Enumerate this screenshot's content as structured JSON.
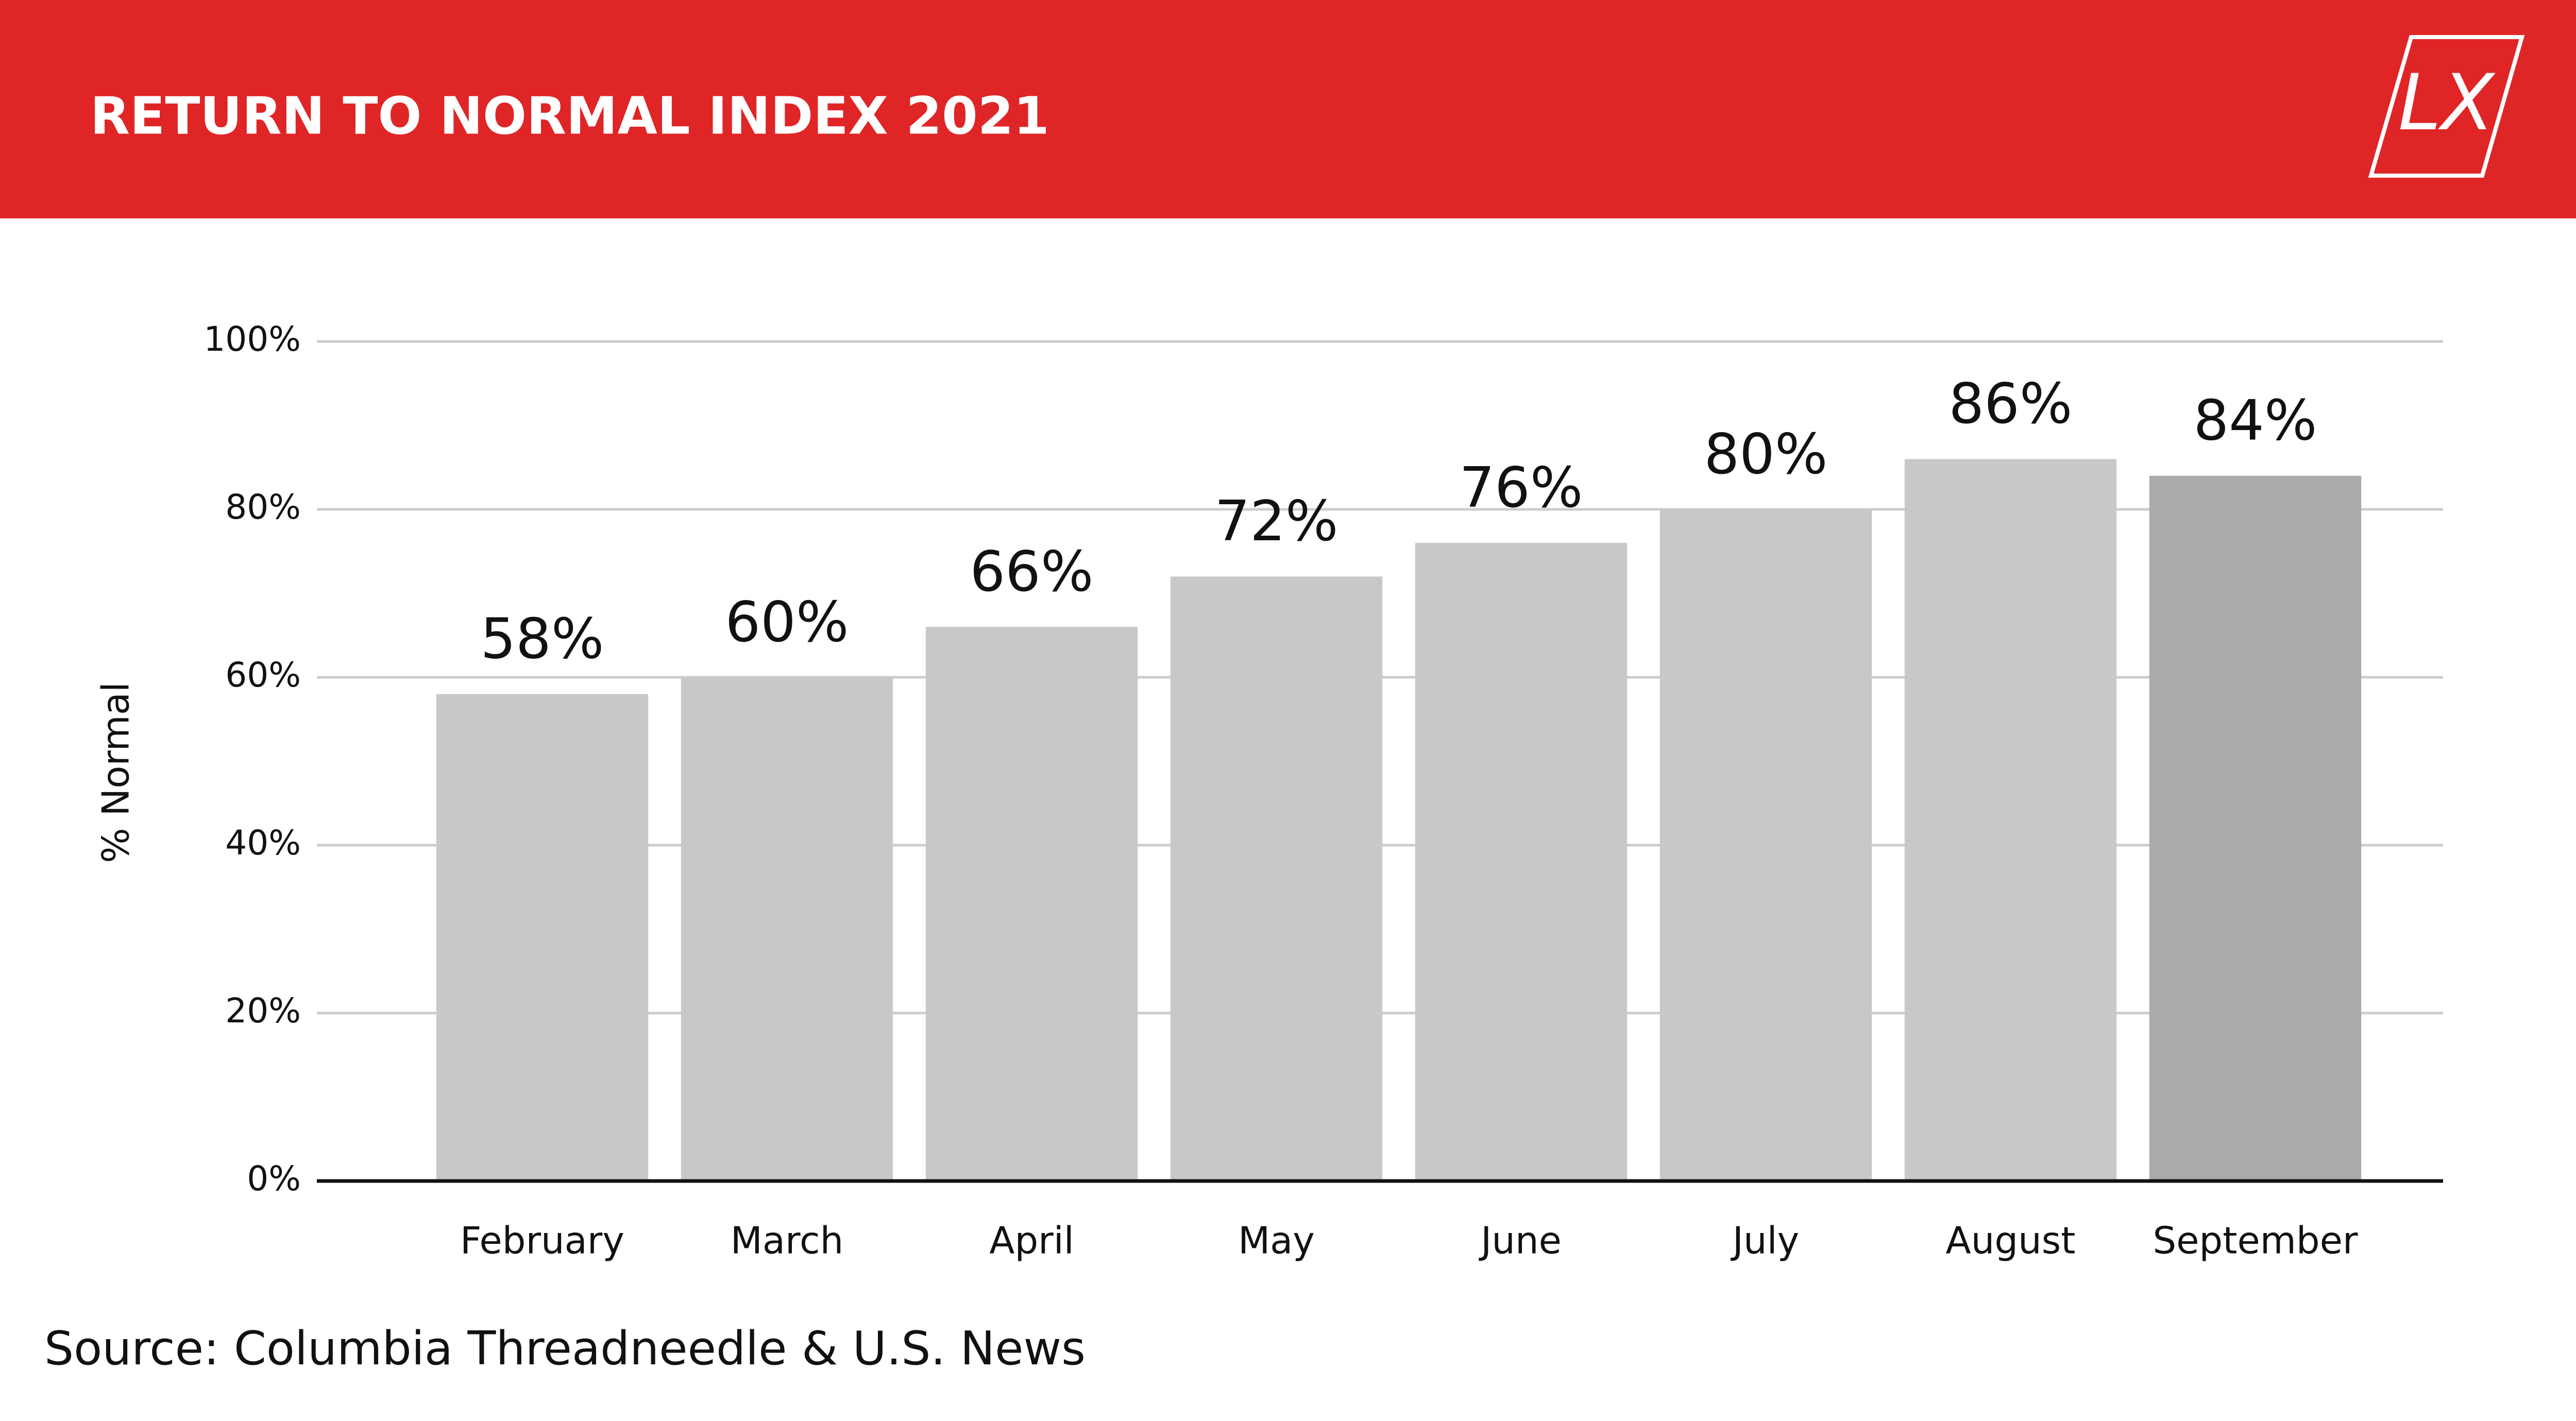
{
  "chart_data": {
    "type": "bar",
    "title": "RETURN TO NORMAL INDEX 2021",
    "logo": "LX",
    "y_label": "% Normal",
    "source": "Source: Columbia Threadneedle & U.S. News",
    "categories": [
      "February",
      "March",
      "April",
      "May",
      "June",
      "July",
      "August",
      "September"
    ],
    "values": [
      58,
      60,
      66,
      72,
      76,
      80,
      86,
      84
    ],
    "value_labels": [
      "58%",
      "60%",
      "66%",
      "72%",
      "76%",
      "80%",
      "86%",
      "84%"
    ],
    "colors": [
      "#c8c8c8",
      "#c8c8c8",
      "#c8c8c8",
      "#c8c8c8",
      "#c8c8c8",
      "#c8c8c8",
      "#c8c8c8",
      "#aaaaaa"
    ],
    "ylim": [
      0,
      100
    ],
    "yticks": [
      {
        "value": 0,
        "label": "0%"
      },
      {
        "value": 20,
        "label": "20%"
      },
      {
        "value": 40,
        "label": "40%"
      },
      {
        "value": 60,
        "label": "60%"
      },
      {
        "value": 80,
        "label": "80%"
      },
      {
        "value": 100,
        "label": "100%"
      }
    ],
    "grid": true
  }
}
